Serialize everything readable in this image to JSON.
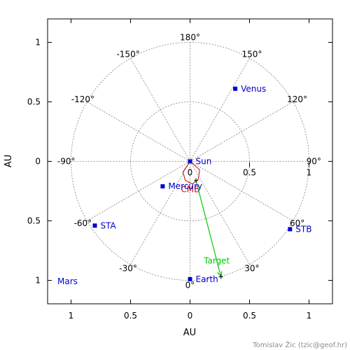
{
  "chart_data": {
    "type": "scatter",
    "projection": "polar",
    "xlabel": "AU",
    "ylabel": "AU",
    "xlim": [
      -1.2,
      1.2
    ],
    "ylim": [
      -1.2,
      1.2
    ],
    "y_reversed": true,
    "x_ticks": [
      {
        "v": -1,
        "t": "1"
      },
      {
        "v": -0.5,
        "t": "0.5"
      },
      {
        "v": 0,
        "t": "0"
      },
      {
        "v": 0.5,
        "t": "0.5"
      },
      {
        "v": 1,
        "t": "1"
      }
    ],
    "y_ticks": [
      {
        "v": -1,
        "t": "1"
      },
      {
        "v": -0.5,
        "t": "0.5"
      },
      {
        "v": 0,
        "t": "0"
      },
      {
        "v": 0.5,
        "t": "0.5"
      },
      {
        "v": 1,
        "t": "1"
      }
    ],
    "grid": true,
    "grid_circles": [
      0.5,
      1.0
    ],
    "grid_spokes_deg": [
      0,
      30,
      60,
      90,
      120,
      150,
      180,
      -150,
      -120,
      -90,
      -60,
      -30
    ],
    "angle_labels": [
      "0°",
      "30°",
      "60°",
      "90°",
      "120°",
      "150°",
      "180°",
      "-150°",
      "-120°",
      "-90°",
      "-60°",
      "-30°"
    ],
    "radial_labels": [
      {
        "r": 0,
        "text": "0"
      },
      {
        "r": 0.5,
        "text": "0.5"
      },
      {
        "r": 1,
        "text": "1"
      }
    ],
    "bodies": [
      {
        "name": "Sun",
        "x": 0.0,
        "y": 0.0,
        "color": "#0000cc"
      },
      {
        "name": "Venus",
        "x": 0.38,
        "y": -0.61,
        "color": "#0000cc"
      },
      {
        "name": "Mercury",
        "x": -0.23,
        "y": 0.21,
        "color": "#0000cc"
      },
      {
        "name": "STA",
        "x": -0.8,
        "y": 0.54,
        "color": "#0000cc"
      },
      {
        "name": "STB",
        "x": 0.84,
        "y": 0.57,
        "color": "#0000cc"
      },
      {
        "name": "Earth",
        "x": 0.0,
        "y": 0.99,
        "color": "#0000cc"
      }
    ],
    "offscale_labels": [
      {
        "name": "Mars",
        "color": "#0000cc"
      }
    ],
    "cme": {
      "label": "CME",
      "color": "#cc0000",
      "outline": [
        [
          0,
          0
        ],
        [
          -0.06,
          0.09
        ],
        [
          -0.04,
          0.16
        ],
        [
          0.02,
          0.19
        ],
        [
          0.07,
          0.15
        ],
        [
          0.08,
          0.07
        ],
        [
          0,
          0
        ]
      ]
    },
    "target": {
      "label": "Target",
      "color": "#00cc00",
      "from": [
        0.05,
        0.16
      ],
      "to": [
        0.26,
        0.97
      ]
    }
  },
  "credit": "Tomislav Žic (tzic@geof.hr)"
}
